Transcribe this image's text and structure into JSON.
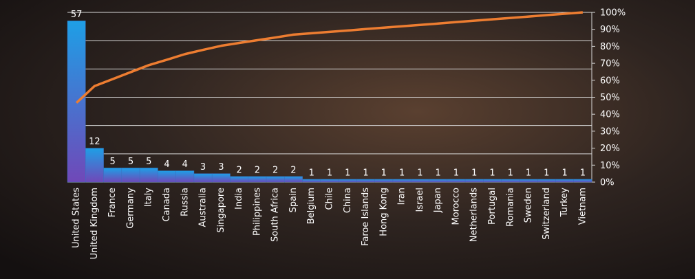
{
  "chart_data": {
    "type": "pareto",
    "categories": [
      "United States",
      "United Kingdom",
      "France",
      "Germany",
      "Italy",
      "Canada",
      "Russia",
      "Australia",
      "Singapore",
      "India",
      "Philippines",
      "South Africa",
      "Spain",
      "Belgium",
      "Chile",
      "China",
      "Faroe Islands",
      "Hong Kong",
      "Iran",
      "Israel",
      "Japan",
      "Morocco",
      "Netherlands",
      "Portugal",
      "Romania",
      "Sweden",
      "Switzerland",
      "Turkey",
      "Vietnam"
    ],
    "series": [
      {
        "type": "bar",
        "color": "#1e9fe6",
        "values": [
          57,
          12,
          5,
          5,
          5,
          4,
          4,
          3,
          3,
          2,
          2,
          2,
          2,
          1,
          1,
          1,
          1,
          1,
          1,
          1,
          1,
          1,
          1,
          1,
          1,
          1,
          1,
          1,
          1
        ]
      },
      {
        "type": "line",
        "axis": "y2",
        "color": "#ed7d31",
        "values": [
          46.7,
          56.6,
          60.7,
          64.8,
          68.9,
          72.1,
          75.4,
          77.9,
          80.3,
          82.0,
          83.6,
          85.2,
          86.9,
          87.7,
          88.5,
          89.3,
          90.2,
          91.0,
          91.8,
          92.6,
          93.4,
          94.3,
          95.1,
          95.9,
          96.7,
          97.5,
          98.4,
          99.2,
          100
        ]
      }
    ],
    "ylim": [
      0,
      60
    ],
    "yticks": [
      0,
      10,
      20,
      30,
      40,
      50,
      60
    ],
    "grid": true,
    "y2lim": [
      0,
      100
    ],
    "y2ticks": [
      {
        "value": 0,
        "label": "0%"
      },
      {
        "value": 10,
        "label": "10%"
      },
      {
        "value": 20,
        "label": "20%"
      },
      {
        "value": 30,
        "label": "30%"
      },
      {
        "value": 40,
        "label": "40%"
      },
      {
        "value": 50,
        "label": "50%"
      },
      {
        "value": 60,
        "label": "60%"
      },
      {
        "value": 70,
        "label": "70%"
      },
      {
        "value": 80,
        "label": "80%"
      },
      {
        "value": 90,
        "label": "90%"
      },
      {
        "value": 100,
        "label": "100%"
      }
    ]
  }
}
